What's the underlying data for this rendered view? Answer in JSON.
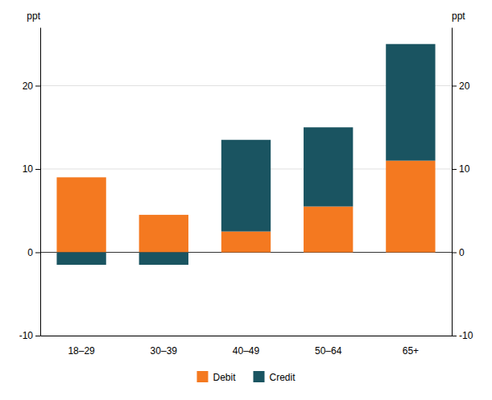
{
  "chart_data": {
    "type": "bar",
    "stacked": true,
    "categories": [
      "18–29",
      "30–39",
      "40–49",
      "50–64",
      "65+"
    ],
    "series": [
      {
        "name": "Debit",
        "color": "#f47920",
        "values": [
          9.0,
          4.5,
          2.5,
          5.5,
          11.0
        ]
      },
      {
        "name": "Credit",
        "color": "#1a5461",
        "values": [
          -1.5,
          -1.5,
          11.0,
          9.5,
          14.0
        ]
      }
    ],
    "ylabel": "ppt",
    "y2label": "ppt",
    "ylim": [
      -10,
      27
    ],
    "yticks": [
      -10,
      0,
      10,
      20
    ],
    "y2lim": [
      -10,
      27
    ],
    "y2ticks": [
      -10,
      0,
      10,
      20
    ],
    "grid": true,
    "legend": "bottom"
  }
}
